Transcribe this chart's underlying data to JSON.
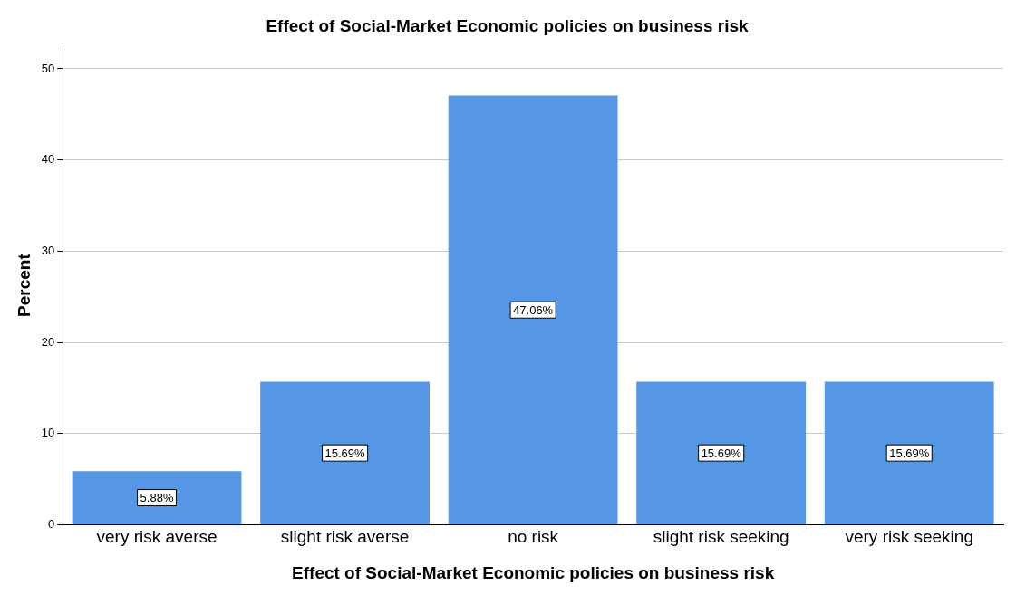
{
  "chart_data": {
    "type": "bar",
    "title": "Effect of Social-Market Economic policies on business risk",
    "xlabel": "Effect of Social-Market Economic policies on business risk",
    "ylabel": "Percent",
    "categories": [
      "very risk averse",
      "slight risk averse",
      "no risk",
      "slight risk seeking",
      "very risk seeking"
    ],
    "values": [
      5.88,
      15.69,
      47.06,
      15.69,
      15.69
    ],
    "value_labels": [
      "5.88%",
      "15.69%",
      "47.06%",
      "15.69%",
      "15.69%"
    ],
    "color": "#5596e5",
    "ylim": [
      0,
      52.5
    ],
    "yticks": [
      0,
      10,
      20,
      30,
      40,
      50
    ],
    "grid": "y",
    "legend": false
  }
}
